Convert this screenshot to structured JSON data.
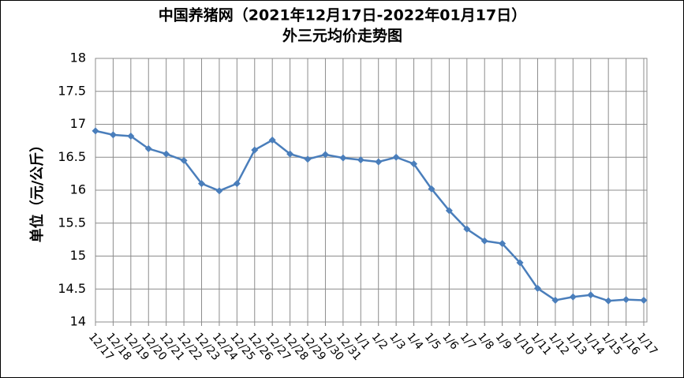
{
  "chart_data": {
    "type": "line",
    "title": "中国养猪网（2021年12月17日-2022年01月17日）",
    "subtitle": "外三元均价走势图",
    "y_label": "单位（元/公斤）",
    "categories": [
      "12/17",
      "12/18",
      "12/19",
      "12/20",
      "12/21",
      "12/22",
      "12/23",
      "12/24",
      "12/25",
      "12/26",
      "12/27",
      "12/28",
      "12/29",
      "12/30",
      "12/31",
      "1/1",
      "1/2",
      "1/3",
      "1/4",
      "1/5",
      "1/6",
      "1/7",
      "1/8",
      "1/9",
      "1/10",
      "1/11",
      "1/12",
      "1/13",
      "1/14",
      "1/15",
      "1/16",
      "1/17"
    ],
    "series": [
      {
        "name": "外三元均价",
        "color": "#4a7ebb",
        "values": [
          16.9,
          16.84,
          16.82,
          16.63,
          16.55,
          16.45,
          16.1,
          15.99,
          16.1,
          16.61,
          16.76,
          16.55,
          16.47,
          16.54,
          16.49,
          16.46,
          16.43,
          16.5,
          16.4,
          16.02,
          15.69,
          15.41,
          15.23,
          15.19,
          14.9,
          14.51,
          14.33,
          14.38,
          14.41,
          14.32,
          14.34,
          14.33
        ]
      }
    ],
    "ylim": [
      14,
      18
    ],
    "yticks": [
      14,
      14.5,
      15,
      15.5,
      16,
      16.5,
      17,
      17.5,
      18
    ],
    "grid": true
  }
}
